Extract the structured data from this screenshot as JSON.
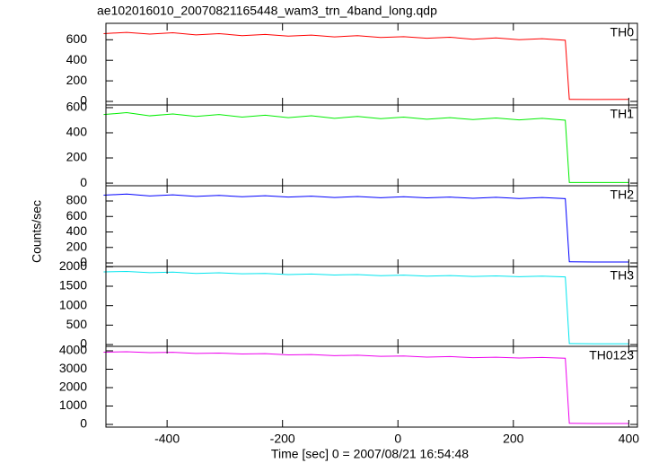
{
  "title": "ae102016010_20070821165448_wam3_trn_4band_long.qdp",
  "x_label": "Time [sec] 0 = 2007/08/21 16:54:48",
  "y_label": "Counts/sec",
  "chart_data": [
    {
      "type": "line",
      "x": [
        -510,
        -470,
        -430,
        -390,
        -350,
        -310,
        -270,
        -230,
        -190,
        -150,
        -110,
        -70,
        -30,
        10,
        50,
        90,
        130,
        170,
        210,
        250,
        290,
        297,
        340,
        400
      ],
      "series": [
        {
          "name": "TH0",
          "color": "#ff0000",
          "values": [
            660,
            672,
            655,
            668,
            648,
            660,
            640,
            652,
            635,
            645,
            628,
            640,
            622,
            630,
            615,
            625,
            605,
            618,
            600,
            610,
            595,
            20,
            18,
            20
          ]
        }
      ],
      "xlim": [
        -506,
        415
      ],
      "xticks": [
        -400,
        -200,
        0,
        200,
        400
      ],
      "ylim": [
        -35,
        760
      ],
      "yticks": [
        0,
        200,
        400,
        600
      ]
    },
    {
      "type": "line",
      "x": [
        -510,
        -470,
        -430,
        -390,
        -350,
        -310,
        -270,
        -230,
        -190,
        -150,
        -110,
        -70,
        -30,
        10,
        50,
        90,
        130,
        170,
        210,
        250,
        290,
        297,
        340,
        400
      ],
      "series": [
        {
          "name": "TH1",
          "color": "#00ee00",
          "values": [
            545,
            560,
            535,
            550,
            530,
            545,
            525,
            540,
            520,
            535,
            515,
            530,
            512,
            525,
            508,
            520,
            505,
            518,
            502,
            515,
            500,
            5,
            5,
            5
          ]
        }
      ],
      "xlim": [
        -506,
        415
      ],
      "xticks": [
        -400,
        -200,
        0,
        200,
        400
      ],
      "ylim": [
        -21,
        621
      ],
      "yticks": [
        0,
        200,
        400,
        600
      ]
    },
    {
      "type": "line",
      "x": [
        -510,
        -470,
        -430,
        -390,
        -350,
        -310,
        -270,
        -230,
        -190,
        -150,
        -110,
        -70,
        -30,
        10,
        50,
        90,
        130,
        170,
        210,
        250,
        290,
        297,
        340,
        400
      ],
      "series": [
        {
          "name": "TH2",
          "color": "#0000ff",
          "values": [
            875,
            890,
            865,
            880,
            860,
            872,
            855,
            868,
            850,
            862,
            845,
            858,
            842,
            855,
            840,
            850,
            835,
            848,
            832,
            845,
            830,
            15,
            12,
            12
          ]
        }
      ],
      "xlim": [
        -506,
        415
      ],
      "xticks": [
        -400,
        -200,
        0,
        200,
        400
      ],
      "ylim": [
        -46,
        997
      ],
      "yticks": [
        0,
        200,
        400,
        600,
        800
      ]
    },
    {
      "type": "line",
      "x": [
        -510,
        -470,
        -430,
        -390,
        -350,
        -310,
        -270,
        -230,
        -190,
        -150,
        -110,
        -70,
        -30,
        10,
        50,
        90,
        130,
        170,
        210,
        250,
        290,
        297,
        340,
        400
      ],
      "series": [
        {
          "name": "TH3",
          "color": "#00e5ee",
          "values": [
            1870,
            1880,
            1850,
            1865,
            1830,
            1845,
            1820,
            1830,
            1800,
            1815,
            1790,
            1800,
            1770,
            1785,
            1760,
            1775,
            1750,
            1765,
            1745,
            1760,
            1740,
            25,
            20,
            20
          ]
        }
      ],
      "xlim": [
        -506,
        415
      ],
      "xticks": [
        -400,
        -200,
        0,
        200,
        400
      ],
      "ylim": [
        -46,
        2008
      ],
      "yticks": [
        0,
        500,
        1000,
        1500,
        2000
      ]
    },
    {
      "type": "line",
      "x": [
        -510,
        -470,
        -430,
        -390,
        -350,
        -310,
        -270,
        -230,
        -190,
        -150,
        -110,
        -70,
        -30,
        10,
        50,
        90,
        130,
        170,
        210,
        250,
        290,
        297,
        340,
        400
      ],
      "series": [
        {
          "name": "TH0123",
          "color": "#ee00ee",
          "values": [
            3930,
            3950,
            3900,
            3920,
            3860,
            3880,
            3830,
            3850,
            3780,
            3800,
            3740,
            3760,
            3700,
            3720,
            3660,
            3690,
            3630,
            3650,
            3610,
            3640,
            3600,
            60,
            50,
            50
          ]
        }
      ],
      "xlim": [
        -506,
        415
      ],
      "xticks": [
        -400,
        -200,
        0,
        200,
        400
      ],
      "ylim": [
        -146,
        4244
      ],
      "yticks": [
        0,
        1000,
        2000,
        3000,
        4000
      ]
    }
  ]
}
